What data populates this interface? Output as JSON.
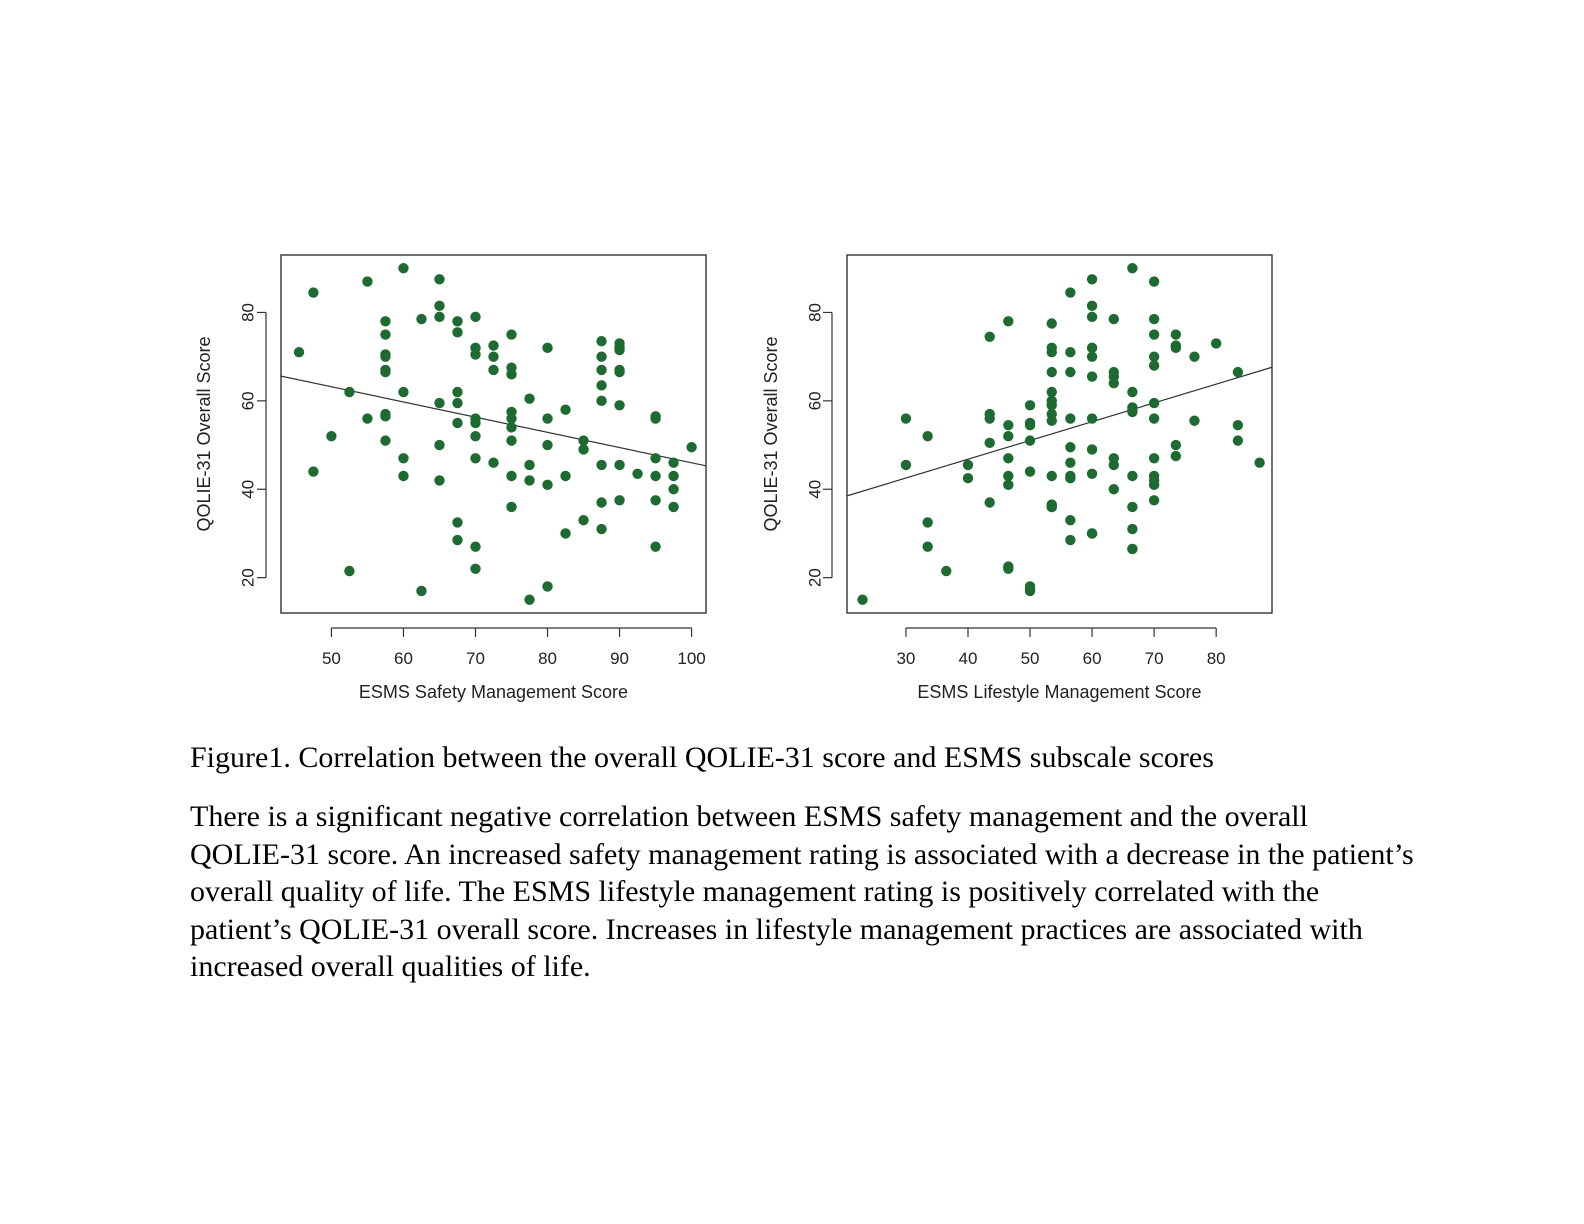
{
  "chart_data": [
    {
      "type": "scatter",
      "title": "",
      "xlabel": "ESMS Safety Management Score",
      "ylabel": "QOLIE-31 Overall Score",
      "xlim": [
        43,
        102
      ],
      "ylim": [
        12,
        93
      ],
      "xticks": [
        50,
        60,
        70,
        80,
        90,
        100
      ],
      "yticks": [
        20,
        40,
        60,
        80
      ],
      "point_color": "#1e6b32",
      "grid": false,
      "legend": "none",
      "trendline": {
        "x": [
          43,
          102
        ],
        "y": [
          65.6,
          45.3
        ]
      },
      "series": [
        {
          "x": [
            45.5,
            47.5,
            47.5,
            50,
            52.5,
            52.5,
            55,
            55,
            57.5,
            57.5,
            57.5,
            57.5,
            57.5,
            57.5,
            57.5,
            57.5,
            57.5,
            60,
            60,
            60,
            60,
            62.5,
            62.5,
            65,
            65,
            65,
            65,
            65,
            65,
            67.5,
            67.5,
            67.5,
            67.5,
            67.5,
            67.5,
            67.5,
            70,
            70,
            70,
            70,
            70,
            70,
            70,
            70,
            70,
            72.5,
            72.5,
            72.5,
            72.5,
            75,
            75,
            75,
            75,
            75,
            75,
            75,
            75,
            75,
            77.5,
            77.5,
            77.5,
            77.5,
            80,
            80,
            80,
            80,
            80,
            82.5,
            82.5,
            82.5,
            85,
            85,
            85,
            87.5,
            87.5,
            87.5,
            87.5,
            87.5,
            87.5,
            87.5,
            87.5,
            90,
            90,
            90,
            90,
            90,
            90,
            90,
            90,
            92.5,
            95,
            95,
            95,
            95,
            95,
            95,
            97.5,
            97.5,
            97.5,
            97.5,
            100
          ],
          "y": [
            71,
            84.5,
            44,
            52,
            62,
            21.5,
            87,
            56,
            78,
            75,
            70,
            67,
            57,
            56.5,
            51,
            70.5,
            66.5,
            90,
            47,
            43,
            62,
            78.5,
            17,
            87.5,
            81.5,
            79,
            59.5,
            50,
            42,
            78,
            75.5,
            62,
            59.5,
            55,
            32.5,
            28.5,
            79,
            72,
            70.5,
            56,
            55,
            52,
            47,
            27,
            22,
            72.5,
            70,
            67,
            46,
            75,
            67.5,
            66,
            57.5,
            56,
            54,
            51,
            43,
            36,
            60.5,
            45.5,
            42,
            15,
            72,
            56,
            50,
            41,
            18,
            58,
            43,
            30,
            51,
            49,
            33,
            73.5,
            70,
            67,
            63.5,
            60,
            45.5,
            37,
            31,
            73,
            72,
            66.5,
            59,
            45.5,
            37.5,
            71.5,
            67,
            43.5,
            56.5,
            56,
            47,
            43,
            37.5,
            27,
            46,
            43,
            40,
            36,
            49.5
          ]
        }
      ]
    },
    {
      "type": "scatter",
      "title": "",
      "xlabel": "ESMS Lifestyle Management Score",
      "ylabel": "QOLIE-31 Overall Score",
      "xlim": [
        20.5,
        89
      ],
      "ylim": [
        12,
        93
      ],
      "xticks": [
        30,
        40,
        50,
        60,
        70,
        80
      ],
      "yticks": [
        20,
        40,
        60,
        80
      ],
      "point_color": "#1e6b32",
      "grid": false,
      "legend": "none",
      "trendline": {
        "x": [
          20.5,
          89
        ],
        "y": [
          38.5,
          67.6
        ]
      },
      "series": [
        {
          "x": [
            23,
            30,
            30,
            33.5,
            33.5,
            33.5,
            36.5,
            40,
            40,
            43.5,
            43.5,
            43.5,
            43.5,
            43.5,
            46.5,
            46.5,
            46.5,
            46.5,
            46.5,
            46.5,
            46.5,
            46.5,
            50,
            50,
            50,
            50,
            50,
            50,
            50,
            50,
            53.5,
            53.5,
            53.5,
            53.5,
            53.5,
            53.5,
            53.5,
            53.5,
            53.5,
            53.5,
            53.5,
            53.5,
            53.5,
            53.5,
            56.5,
            56.5,
            56.5,
            56.5,
            56.5,
            56.5,
            56.5,
            56.5,
            56.5,
            56.5,
            60,
            60,
            60,
            60,
            60,
            60,
            60,
            60,
            60,
            60,
            60,
            63.5,
            63.5,
            63.5,
            63.5,
            63.5,
            63.5,
            63.5,
            66.5,
            66.5,
            66.5,
            66.5,
            66.5,
            66.5,
            66.5,
            66.5,
            66.5,
            66.5,
            70,
            70,
            70,
            70,
            70,
            70,
            70,
            70,
            70,
            70,
            70,
            70,
            73.5,
            73.5,
            73.5,
            73.5,
            73.5,
            76.5,
            76.5,
            80,
            83.5,
            83.5,
            83.5,
            87
          ],
          "y": [
            15,
            56,
            45.5,
            52,
            32.5,
            27,
            21.5,
            45.5,
            42.5,
            74.5,
            57,
            56,
            50.5,
            37,
            78,
            54.5,
            52,
            47,
            43,
            41,
            22,
            22.5,
            59,
            55,
            54.5,
            51,
            44,
            18,
            17,
            17.5,
            77.5,
            72,
            71,
            66.5,
            62,
            60,
            59,
            57,
            55.5,
            43,
            36.5,
            36,
            36.5,
            36,
            84.5,
            71,
            66.5,
            56,
            49.5,
            46,
            43,
            33,
            28.5,
            42.5,
            87.5,
            81.5,
            79,
            72,
            70,
            65.5,
            56,
            49,
            43.5,
            30,
            30,
            78.5,
            66.5,
            65.5,
            64,
            47,
            45.5,
            40,
            90,
            62,
            58.5,
            58,
            57.5,
            43,
            36,
            31,
            26.5,
            26.5,
            87,
            78.5,
            75,
            70,
            68,
            59.5,
            56,
            47,
            43,
            42,
            41,
            37.5,
            75,
            72.5,
            72,
            50,
            47.5,
            70,
            55.5,
            73,
            66.5,
            54.5,
            51,
            46
          ]
        }
      ]
    }
  ],
  "caption": "Figure1. Correlation between the overall QOLIE-31 score and ESMS subscale scores",
  "paragraph": "There is a significant negative correlation between ESMS safety management and the overall QOLIE-31 score. An increased safety management rating is associated with a decrease in the patient’s overall quality of life. The ESMS lifestyle management rating is positively correlated with the patient’s QOLIE-31 overall score. Increases in lifestyle management practices are associated with increased overall qualities of life."
}
